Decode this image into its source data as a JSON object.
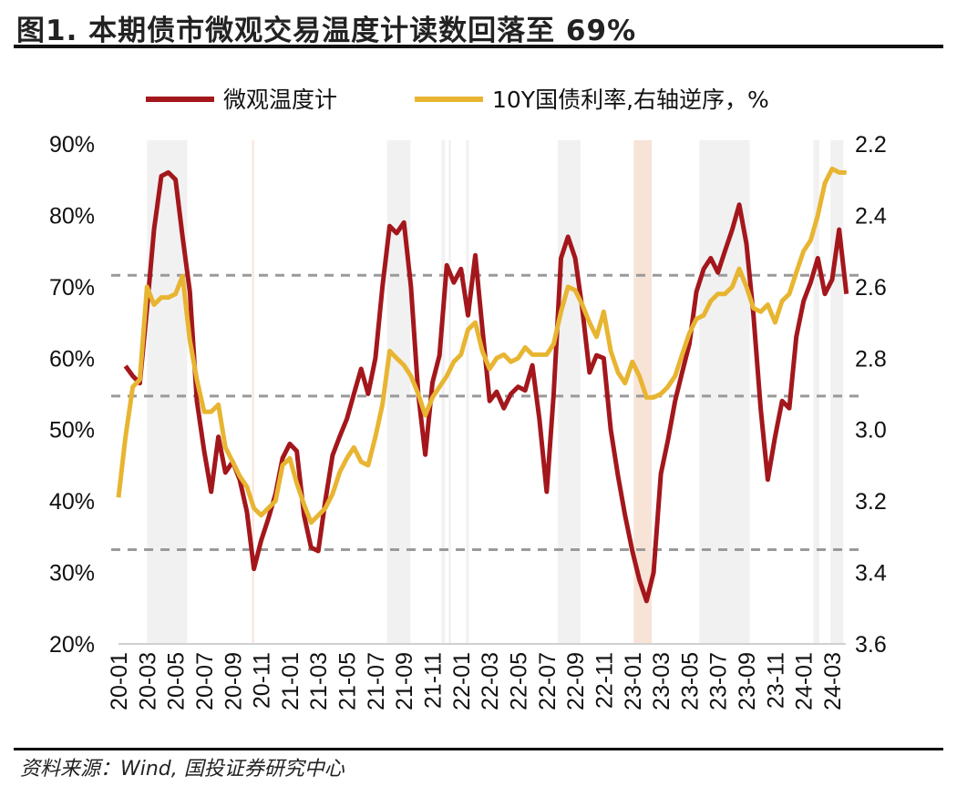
{
  "title": "图1. 本期债市微观交易温度计读数回落至 69%",
  "source": "资料来源：Wind, 国投证券研究中心",
  "chart_data": {
    "type": "line",
    "title": "图1. 本期债市微观交易温度计读数回落至 69%",
    "legend_position": "top",
    "grid": false,
    "x_tick_labels": [
      "20-01",
      "20-03",
      "20-05",
      "20-07",
      "20-09",
      "20-11",
      "21-01",
      "21-03",
      "21-05",
      "21-07",
      "21-09",
      "21-11",
      "22-01",
      "22-03",
      "22-05",
      "22-07",
      "22-09",
      "22-11",
      "23-01",
      "23-03",
      "23-05",
      "23-07",
      "23-09",
      "23-11",
      "24-01",
      "24-03"
    ],
    "y_left": {
      "range": [
        20,
        90
      ],
      "ticks": [
        "20%",
        "30%",
        "40%",
        "50%",
        "60%",
        "70%",
        "80%",
        "90%"
      ],
      "unit": "%"
    },
    "y_right": {
      "range": [
        2.2,
        3.6
      ],
      "reversed": true,
      "ticks": [
        "2.2",
        "2.4",
        "2.6",
        "2.8",
        "3.0",
        "3.2",
        "3.4",
        "3.6"
      ]
    },
    "reference_lines_left_axis": [
      71.6,
      54.7,
      33.2
    ],
    "shaded_periods": [
      {
        "from": "2020-03-01",
        "to": "2020-05-26",
        "color": "#eeeeee"
      },
      {
        "from": "2020-10-12",
        "to": "2020-10-14",
        "color": "#f6dccd"
      },
      {
        "from": "2021-07-26",
        "to": "2021-09-15",
        "color": "#eeeeee"
      },
      {
        "from": "2021-11-20",
        "to": "2021-11-28",
        "color": "#eeeeee"
      },
      {
        "from": "2021-12-05",
        "to": "2021-12-10",
        "color": "#eeeeee"
      },
      {
        "from": "2022-01-12",
        "to": "2022-01-18",
        "color": "#eeeeee"
      },
      {
        "from": "2022-07-25",
        "to": "2022-09-12",
        "color": "#eeeeee"
      },
      {
        "from": "2023-01-04",
        "to": "2023-02-12",
        "color": "#f6dccd"
      },
      {
        "from": "2023-05-22",
        "to": "2023-09-08",
        "color": "#eeeeee"
      },
      {
        "from": "2024-01-22",
        "to": "2024-02-04",
        "color": "#eeeeee"
      },
      {
        "from": "2024-02-28",
        "to": "2024-03-25",
        "color": "#eeeeee"
      }
    ],
    "x": [
      "2020-01-01",
      "2020-01-16",
      "2020-02-01",
      "2020-02-16",
      "2020-03-01",
      "2020-03-16",
      "2020-04-01",
      "2020-04-16",
      "2020-05-01",
      "2020-05-16",
      "2020-06-01",
      "2020-06-16",
      "2020-07-01",
      "2020-07-16",
      "2020-08-01",
      "2020-08-16",
      "2020-09-01",
      "2020-09-16",
      "2020-10-01",
      "2020-10-16",
      "2020-11-01",
      "2020-11-16",
      "2020-12-01",
      "2020-12-16",
      "2021-01-01",
      "2021-01-16",
      "2021-02-01",
      "2021-02-16",
      "2021-03-01",
      "2021-03-16",
      "2021-04-01",
      "2021-04-16",
      "2021-05-01",
      "2021-05-16",
      "2021-06-01",
      "2021-06-16",
      "2021-07-01",
      "2021-07-16",
      "2021-08-01",
      "2021-08-16",
      "2021-09-01",
      "2021-09-16",
      "2021-10-01",
      "2021-10-16",
      "2021-11-01",
      "2021-11-16",
      "2021-12-01",
      "2021-12-16",
      "2022-01-01",
      "2022-01-16",
      "2022-02-01",
      "2022-02-16",
      "2022-03-01",
      "2022-03-16",
      "2022-04-01",
      "2022-04-16",
      "2022-05-01",
      "2022-05-16",
      "2022-06-01",
      "2022-06-16",
      "2022-07-01",
      "2022-07-16",
      "2022-08-01",
      "2022-08-16",
      "2022-09-01",
      "2022-09-16",
      "2022-10-01",
      "2022-10-16",
      "2022-11-01",
      "2022-11-16",
      "2022-12-01",
      "2022-12-16",
      "2023-01-01",
      "2023-01-16",
      "2023-02-01",
      "2023-02-16",
      "2023-03-01",
      "2023-03-16",
      "2023-04-01",
      "2023-04-16",
      "2023-05-01",
      "2023-05-16",
      "2023-06-01",
      "2023-06-16",
      "2023-07-01",
      "2023-07-16",
      "2023-08-01",
      "2023-08-16",
      "2023-09-01",
      "2023-09-16",
      "2023-10-01",
      "2023-10-16",
      "2023-11-01",
      "2023-11-16",
      "2023-12-01",
      "2023-12-16",
      "2024-01-01",
      "2024-01-16",
      "2024-02-01",
      "2024-02-16",
      "2024-03-01",
      "2024-03-16",
      "2024-04-01"
    ],
    "series": [
      {
        "name": "微观温度计",
        "axis": "left",
        "color": "#a3171c",
        "values": [
          null,
          58.9,
          57.5,
          56.5,
          67,
          78,
          85.5,
          86,
          85,
          77,
          69.3,
          54,
          47,
          41.3,
          49,
          44,
          45.5,
          43,
          38.5,
          30.5,
          34.5,
          37.5,
          41,
          46,
          48,
          47,
          38,
          33.5,
          33,
          40,
          46.4,
          49,
          51.5,
          55,
          58.5,
          55,
          60,
          70,
          78.5,
          77.5,
          79,
          70,
          55,
          46.5,
          56.6,
          60.4,
          73,
          70.6,
          72.5,
          66,
          74.4,
          64.2,
          54,
          55.3,
          53,
          55,
          56,
          55.5,
          59,
          51.5,
          41.3,
          55,
          74,
          77,
          74,
          67,
          58,
          60.4,
          60,
          50,
          43.5,
          38,
          33,
          29,
          26,
          30,
          43.8,
          48.5,
          54,
          58,
          62,
          69.3,
          72.5,
          74,
          72,
          75,
          78,
          81.5,
          76,
          66,
          52.8,
          43,
          49,
          54,
          53,
          63,
          68,
          70.6,
          74,
          69,
          71,
          78,
          69
        ]
      },
      {
        "name": "10Y国债利率,右轴逆序，%",
        "axis": "right",
        "color": "#e8b532",
        "values": [
          3.19,
          3.02,
          2.88,
          2.86,
          2.6,
          2.65,
          2.63,
          2.63,
          2.62,
          2.57,
          2.75,
          2.86,
          2.95,
          2.95,
          2.93,
          3.05,
          3.09,
          3.13,
          3.16,
          3.22,
          3.24,
          3.22,
          3.2,
          3.1,
          3.08,
          3.15,
          3.21,
          3.26,
          3.24,
          3.22,
          3.18,
          3.12,
          3.08,
          3.05,
          3.09,
          3.1,
          3.02,
          2.93,
          2.78,
          2.8,
          2.82,
          2.85,
          2.9,
          2.96,
          2.91,
          2.88,
          2.85,
          2.81,
          2.79,
          2.72,
          2.7,
          2.78,
          2.83,
          2.8,
          2.79,
          2.81,
          2.8,
          2.77,
          2.79,
          2.79,
          2.79,
          2.76,
          2.67,
          2.6,
          2.61,
          2.65,
          2.7,
          2.74,
          2.67,
          2.78,
          2.84,
          2.87,
          2.81,
          2.85,
          2.91,
          2.91,
          2.9,
          2.88,
          2.85,
          2.79,
          2.73,
          2.69,
          2.68,
          2.64,
          2.62,
          2.62,
          2.6,
          2.55,
          2.6,
          2.66,
          2.67,
          2.65,
          2.7,
          2.64,
          2.62,
          2.56,
          2.5,
          2.47,
          2.4,
          2.31,
          2.27,
          2.28,
          2.28
        ]
      }
    ]
  }
}
